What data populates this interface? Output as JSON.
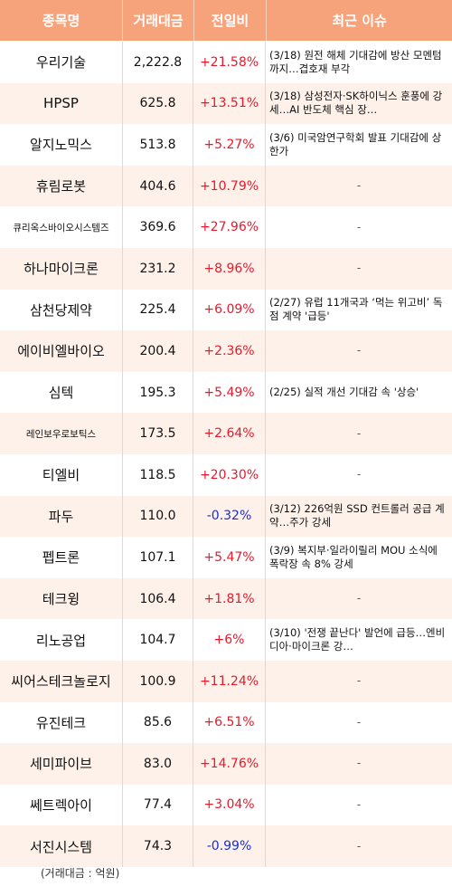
{
  "headers": [
    "종목명",
    "거래대금",
    "전일비",
    "최근 이슈"
  ],
  "rows": [
    {
      "name": "우리기술",
      "amount": "2,222.8",
      "change": "+21.58%",
      "dir": "up",
      "issue": "(3/18) 원전 해체 기대감에 방산 모멘텀까지…겹호재 부각"
    },
    {
      "name": "HPSP",
      "amount": "625.8",
      "change": "+13.51%",
      "dir": "up",
      "issue": "(3/18) 삼성전자·SK하이닉스 훈풍에 강세…AI 반도체 핵심 장…"
    },
    {
      "name": "알지노믹스",
      "amount": "513.8",
      "change": "+5.27%",
      "dir": "up",
      "issue": "(3/6) 미국암연구학회 발표 기대감에 상한가"
    },
    {
      "name": "휴림로봇",
      "amount": "404.6",
      "change": "+10.79%",
      "dir": "up",
      "issue": "-"
    },
    {
      "name": "큐리옥스바이오시스템즈",
      "amount": "369.6",
      "change": "+27.96%",
      "dir": "up",
      "issue": "-",
      "small": true
    },
    {
      "name": "하나마이크론",
      "amount": "231.2",
      "change": "+8.96%",
      "dir": "up",
      "issue": "-"
    },
    {
      "name": "삼천당제약",
      "amount": "225.4",
      "change": "+6.09%",
      "dir": "up",
      "issue": "(2/27) 유럽 11개국과 ‘먹는 위고비’ 독점 계약 '급등'"
    },
    {
      "name": "에이비엘바이오",
      "amount": "200.4",
      "change": "+2.36%",
      "dir": "up",
      "issue": "-"
    },
    {
      "name": "심텍",
      "amount": "195.3",
      "change": "+5.49%",
      "dir": "up",
      "issue": "(2/25) 실적 개선 기대감 속 '상승'"
    },
    {
      "name": "레인보우로보틱스",
      "amount": "173.5",
      "change": "+2.64%",
      "dir": "up",
      "issue": "-",
      "small": true
    },
    {
      "name": "티엘비",
      "amount": "118.5",
      "change": "+20.30%",
      "dir": "up",
      "issue": "-"
    },
    {
      "name": "파두",
      "amount": "110.0",
      "change": "-0.32%",
      "dir": "down",
      "issue": "(3/12) 226억원 SSD 컨트롤러 공급 계약…주가 강세"
    },
    {
      "name": "펩트론",
      "amount": "107.1",
      "change": "+5.47%",
      "dir": "up",
      "issue": "(3/9) 복지부·일라이릴리 MOU 소식에 폭락장 속 8% 강세"
    },
    {
      "name": "테크윙",
      "amount": "106.4",
      "change": "+1.81%",
      "dir": "up",
      "issue": "-"
    },
    {
      "name": "리노공업",
      "amount": "104.7",
      "change": "+6%",
      "dir": "up",
      "issue": "(3/10) '전쟁 끝난다' 발언에 급등…엔비디아·마이크론 강…"
    },
    {
      "name": "씨어스테크놀로지",
      "amount": "100.9",
      "change": "+11.24%",
      "dir": "up",
      "issue": "-"
    },
    {
      "name": "유진테크",
      "amount": "85.6",
      "change": "+6.51%",
      "dir": "up",
      "issue": "-"
    },
    {
      "name": "세미파이브",
      "amount": "83.0",
      "change": "+14.76%",
      "dir": "up",
      "issue": "-"
    },
    {
      "name": "쎄트렉아이",
      "amount": "77.4",
      "change": "+3.04%",
      "dir": "up",
      "issue": "-"
    },
    {
      "name": "서진시스템",
      "amount": "74.3",
      "change": "-0.99%",
      "dir": "down",
      "issue": "-"
    }
  ],
  "footnote": "(거래대금 : 억원)",
  "colors": {
    "header": "#f6a27a",
    "alt_row": "#fdf1ea",
    "up": "#e8192c",
    "down": "#1c2fd0"
  }
}
